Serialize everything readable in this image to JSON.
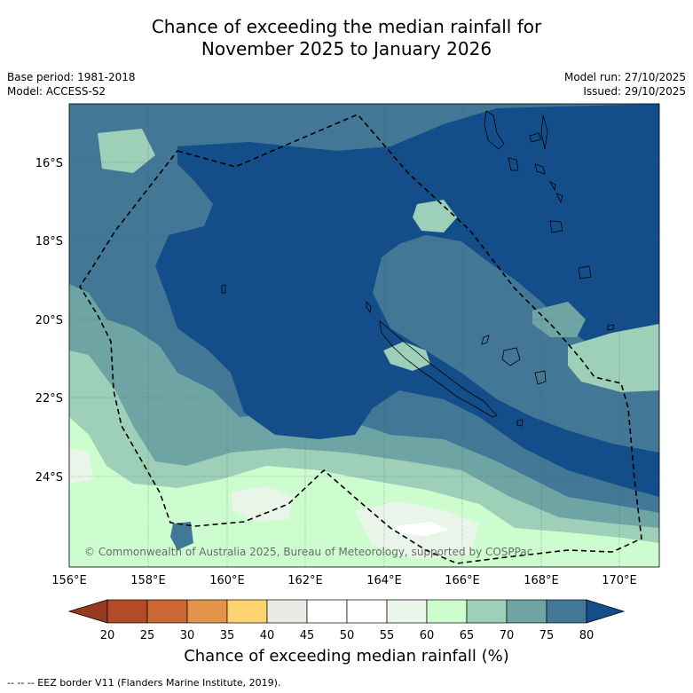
{
  "title": {
    "line1": "Chance of exceeding the median rainfall for",
    "line2": "November 2025 to January 2026"
  },
  "meta": {
    "base_period": "Base period: 1981-2018",
    "model": "Model: ACCESS-S2",
    "model_run": "Model run: 27/10/2025",
    "issued": "Issued: 29/10/2025"
  },
  "map": {
    "copyright": "© Commonwealth of Australia 2025, Bureau of Meteorology, supported by COSPPac",
    "lon_ticks": [
      "156°E",
      "158°E",
      "160°E",
      "162°E",
      "164°E",
      "166°E",
      "168°E",
      "170°E"
    ],
    "lat_ticks": [
      "16°S",
      "18°S",
      "20°S",
      "22°S",
      "24°S"
    ]
  },
  "colorbar": {
    "label": "Chance of exceeding median rainfall (%)",
    "ticks": [
      "20",
      "25",
      "30",
      "35",
      "40",
      "45",
      "50",
      "55",
      "60",
      "65",
      "70",
      "75",
      "80"
    ],
    "colors": {
      "below_20": "#96391f",
      "c20": "#b34b26",
      "c25": "#cc6633",
      "c30": "#e39449",
      "c35": "#fdd36f",
      "c40": "#ebebe6",
      "c45": "#ffffff",
      "c50": "#ffffff",
      "c55": "#eaf5ea",
      "c60": "#cdfdcf",
      "c65": "#9ecfb8",
      "c70": "#6fa4a4",
      "c75": "#427896",
      "above_80": "#134e8a"
    }
  },
  "footnote": "--  --  -- EEZ border V11 (Flanders Marine Institute, 2019)."
}
